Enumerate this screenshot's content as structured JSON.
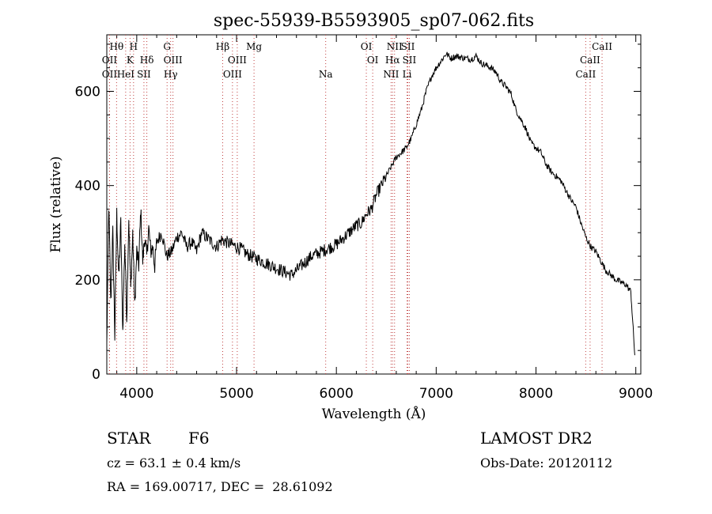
{
  "chart_data": {
    "type": "line",
    "title": "spec-55939-B5593905_sp07-062.fits",
    "xlabel": "Wavelength (Å)",
    "ylabel": "Flux (relative)",
    "xlim": [
      3700,
      9050
    ],
    "ylim": [
      0,
      720
    ],
    "x_ticks": [
      4000,
      5000,
      6000,
      7000,
      8000,
      9000
    ],
    "y_ticks": [
      0,
      200,
      400,
      600
    ],
    "grid": false,
    "legend": "none",
    "line_color": "#000000",
    "series": [
      {
        "x": [
          3700,
          3720,
          3740,
          3760,
          3780,
          3800,
          3820,
          3840,
          3860,
          3880,
          3900,
          3920,
          3940,
          3960,
          3980,
          4000,
          4020,
          4040,
          4060,
          4080,
          4100,
          4120,
          4140,
          4160,
          4180,
          4200,
          4250,
          4300,
          4350,
          4400,
          4450,
          4500,
          4550,
          4600,
          4650,
          4700,
          4750,
          4800,
          4850,
          4900,
          4950,
          5000,
          5050,
          5100,
          5150,
          5200,
          5250,
          5300,
          5350,
          5400,
          5450,
          5500,
          5550,
          5600,
          5650,
          5700,
          5750,
          5800,
          5850,
          5900,
          5950,
          6000,
          6050,
          6100,
          6150,
          6200,
          6250,
          6300,
          6350,
          6400,
          6450,
          6500,
          6550,
          6600,
          6650,
          6700,
          6750,
          6800,
          6850,
          6900,
          6950,
          7000,
          7050,
          7100,
          7150,
          7200,
          7250,
          7300,
          7350,
          7400,
          7450,
          7500,
          7550,
          7600,
          7650,
          7700,
          7750,
          7800,
          7850,
          7900,
          7950,
          8000,
          8050,
          8100,
          8150,
          8200,
          8250,
          8300,
          8350,
          8400,
          8450,
          8500,
          8550,
          8600,
          8650,
          8700,
          8750,
          8800,
          8850,
          8900,
          8950,
          8990
        ],
        "y": [
          60,
          360,
          150,
          300,
          80,
          340,
          200,
          320,
          90,
          280,
          120,
          330,
          180,
          300,
          140,
          260,
          230,
          350,
          240,
          290,
          250,
          310,
          260,
          270,
          230,
          280,
          300,
          250,
          260,
          290,
          300,
          270,
          280,
          260,
          300,
          290,
          280,
          270,
          285,
          280,
          275,
          270,
          265,
          255,
          250,
          245,
          240,
          235,
          230,
          225,
          220,
          215,
          210,
          220,
          230,
          240,
          250,
          255,
          260,
          265,
          270,
          275,
          285,
          295,
          305,
          315,
          320,
          340,
          350,
          380,
          400,
          420,
          440,
          460,
          470,
          480,
          500,
          530,
          560,
          600,
          630,
          650,
          665,
          680,
          670,
          675,
          672,
          670,
          668,
          675,
          660,
          655,
          650,
          640,
          620,
          610,
          595,
          560,
          540,
          520,
          490,
          480,
          470,
          445,
          430,
          420,
          410,
          390,
          370,
          355,
          320,
          290,
          270,
          260,
          240,
          220,
          210,
          200,
          195,
          190,
          175,
          40
        ]
      }
    ],
    "line_markers": [
      {
        "name": "Hθ",
        "x": 3798,
        "row": 1
      },
      {
        "name": "OII",
        "x": 3727,
        "row": 2
      },
      {
        "name": "OII",
        "x": 3727,
        "row": 3
      },
      {
        "name": "H",
        "x": 3968,
        "row": 1
      },
      {
        "name": "K",
        "x": 3933,
        "row": 2
      },
      {
        "name": "HeI",
        "x": 3889,
        "row": 3
      },
      {
        "name": "Hδ",
        "x": 4101,
        "row": 2
      },
      {
        "name": "SII",
        "x": 4072,
        "row": 3
      },
      {
        "name": "G",
        "x": 4304,
        "row": 1
      },
      {
        "name": "OIII",
        "x": 4363,
        "row": 2
      },
      {
        "name": "Hγ",
        "x": 4340,
        "row": 3
      },
      {
        "name": "Hβ",
        "x": 4861,
        "row": 1
      },
      {
        "name": "OIII",
        "x": 5007,
        "row": 2
      },
      {
        "name": "OIII",
        "x": 4959,
        "row": 3
      },
      {
        "name": "Mg",
        "x": 5175,
        "row": 1
      },
      {
        "name": "Na",
        "x": 5893,
        "row": 3
      },
      {
        "name": "OI",
        "x": 6300,
        "row": 1
      },
      {
        "name": "OI",
        "x": 6364,
        "row": 2
      },
      {
        "name": "NII",
        "x": 6583,
        "row": 1
      },
      {
        "name": "SII",
        "x": 6716,
        "row": 1
      },
      {
        "name": "Hα",
        "x": 6563,
        "row": 2
      },
      {
        "name": "SII",
        "x": 6731,
        "row": 2
      },
      {
        "name": "NII",
        "x": 6548,
        "row": 3
      },
      {
        "name": "Li",
        "x": 6708,
        "row": 3
      },
      {
        "name": "CaII",
        "x": 8662,
        "row": 1
      },
      {
        "name": "CaII",
        "x": 8542,
        "row": 2
      },
      {
        "name": "CaII",
        "x": 8498,
        "row": 3
      }
    ]
  },
  "info": {
    "class": "STAR",
    "subclass": "F6",
    "survey": "LAMOST DR2",
    "cz": "cz = 63.1 ± 0.4 km/s",
    "obs_date": "Obs-Date: 20120112",
    "radec": "RA = 169.00717, DEC =  28.61092"
  }
}
